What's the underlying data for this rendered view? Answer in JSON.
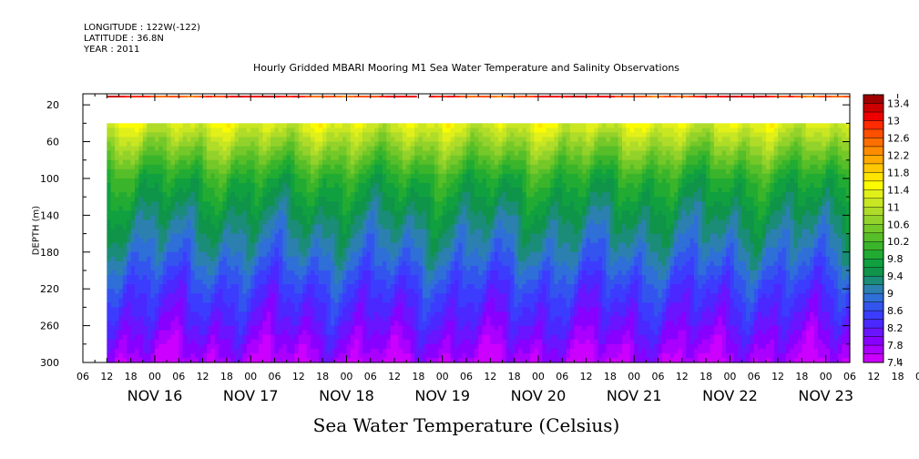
{
  "header": {
    "longitude": "LONGITUDE : 122W(-122)",
    "latitude": "LATITUDE : 36.8N",
    "year": "YEAR : 2011"
  },
  "chart_data": {
    "type": "heatmap",
    "title": "Hourly Gridded MBARI Mooring M1 Sea Water Temperature and Salinity Observations",
    "xlabel": "Sea Water Temperature (Celsius)",
    "ylabel": "DEPTH (m)",
    "x_hour_ticks": [
      "06",
      "12",
      "18",
      "00",
      "06",
      "12",
      "18",
      "00",
      "06",
      "12",
      "18",
      "00",
      "06",
      "12",
      "18",
      "00",
      "06",
      "12",
      "18",
      "00",
      "06",
      "12",
      "18",
      "00",
      "06",
      "12",
      "18",
      "00",
      "06",
      "12",
      "18",
      "00",
      "06",
      "12",
      "18",
      "00",
      "06",
      "12",
      "18",
      "00",
      "06",
      "12",
      "18",
      "00",
      "06",
      "12",
      "18",
      "00",
      "06",
      "12",
      "18",
      "00",
      "06",
      "12",
      "18",
      "00"
    ],
    "x_day_labels": [
      {
        "label": "NOV 16",
        "day": 16
      },
      {
        "label": "NOV 17",
        "day": 17
      },
      {
        "label": "NOV 18",
        "day": 18
      },
      {
        "label": "NOV 19",
        "day": 19
      },
      {
        "label": "NOV 20",
        "day": 20
      },
      {
        "label": "NOV 21",
        "day": 21
      },
      {
        "label": "NOV 22",
        "day": 22
      },
      {
        "label": "NOV 23",
        "day": 23
      }
    ],
    "x_range_days": [
      15.25,
      23.25
    ],
    "data_x_range_days": [
      15.5,
      23.25
    ],
    "y_ticks": [
      20,
      60,
      100,
      140,
      180,
      220,
      260,
      300
    ],
    "ylim": [
      300,
      8
    ],
    "surface_band_depth": [
      10,
      12
    ],
    "surface_band_gap_days": [
      18.75,
      18.875
    ],
    "no_data_depth": [
      12,
      40
    ],
    "colorbar": {
      "labels": [
        "13.4",
        "13",
        "12.6",
        "12.2",
        "11.8",
        "11.4",
        "11",
        "10.6",
        "10.2",
        "9.8",
        "9.4",
        "9",
        "8.6",
        "8.2",
        "7.8",
        "7.4"
      ],
      "range": [
        7.4,
        13.6
      ],
      "levels": [
        {
          "min": 7.4,
          "color": "#cc00ff"
        },
        {
          "min": 7.6,
          "color": "#aa00ff"
        },
        {
          "min": 7.8,
          "color": "#8800ff"
        },
        {
          "min": 8.0,
          "color": "#6a14ff"
        },
        {
          "min": 8.2,
          "color": "#4b28ff"
        },
        {
          "min": 8.4,
          "color": "#3c3cff"
        },
        {
          "min": 8.6,
          "color": "#3355ee"
        },
        {
          "min": 8.8,
          "color": "#2f6fd8"
        },
        {
          "min": 9.0,
          "color": "#2c80b0"
        },
        {
          "min": 9.2,
          "color": "#1a8c78"
        },
        {
          "min": 9.4,
          "color": "#0f9449"
        },
        {
          "min": 9.6,
          "color": "#10a040"
        },
        {
          "min": 9.8,
          "color": "#22ab33"
        },
        {
          "min": 10.0,
          "color": "#3ab52b"
        },
        {
          "min": 10.2,
          "color": "#56be28"
        },
        {
          "min": 10.4,
          "color": "#74c828"
        },
        {
          "min": 10.6,
          "color": "#92d22a"
        },
        {
          "min": 10.8,
          "color": "#aedc28"
        },
        {
          "min": 11.0,
          "color": "#c8e622"
        },
        {
          "min": 11.2,
          "color": "#e2f01a"
        },
        {
          "min": 11.4,
          "color": "#fcfc00"
        },
        {
          "min": 11.6,
          "color": "#ffe400"
        },
        {
          "min": 11.8,
          "color": "#ffc800"
        },
        {
          "min": 12.0,
          "color": "#ffaa00"
        },
        {
          "min": 12.2,
          "color": "#ff8c00"
        },
        {
          "min": 12.4,
          "color": "#ff6e00"
        },
        {
          "min": 12.6,
          "color": "#ff5000"
        },
        {
          "min": 12.8,
          "color": "#ff2a00"
        },
        {
          "min": 13.0,
          "color": "#ee0000"
        },
        {
          "min": 13.2,
          "color": "#cc0000"
        },
        {
          "min": 13.4,
          "color": "#a00000"
        }
      ]
    },
    "depth_profile": [
      {
        "depth": 12,
        "temp": 12.9
      },
      {
        "depth": 40,
        "temp": 11.3
      },
      {
        "depth": 60,
        "temp": 10.8
      },
      {
        "depth": 100,
        "temp": 9.9
      },
      {
        "depth": 140,
        "temp": 9.4
      },
      {
        "depth": 180,
        "temp": 9.0
      },
      {
        "depth": 220,
        "temp": 8.5
      },
      {
        "depth": 260,
        "temp": 8.1
      },
      {
        "depth": 300,
        "temp": 7.6
      }
    ],
    "grid": false
  }
}
